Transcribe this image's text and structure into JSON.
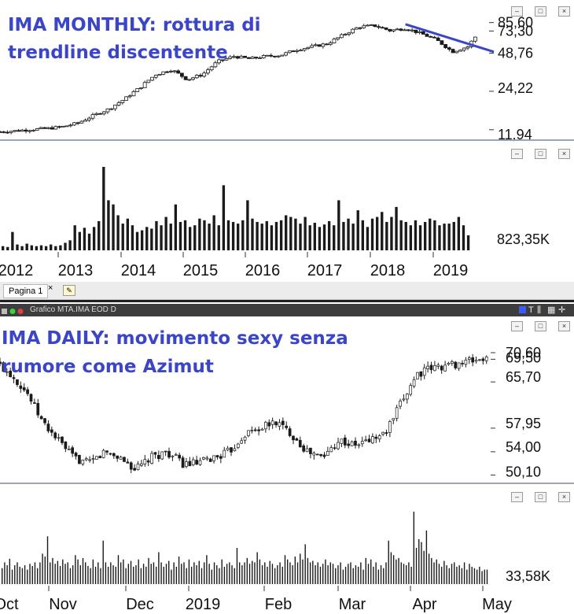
{
  "annotations": {
    "monthly_line1": "IMA MONTHLY: rottura di",
    "monthly_line2": "trendline discentente",
    "daily_line1": "IMA DAILY: movimento sexy senza",
    "daily_line2": "rumore come Azimut"
  },
  "tabs": {
    "page_label": "Pagina 1",
    "close_glyph": "×"
  },
  "daily_window": {
    "title": "Grafico MTA.IMA EOD D"
  },
  "window_buttons": [
    "minimize-icon",
    "restore-icon",
    "close-icon"
  ],
  "colors": {
    "candle": "#1a1a1a",
    "trendline": "#3a45c8",
    "annotation": "#3a45c8",
    "separator": "#9aa3b8"
  },
  "chart_data": [
    {
      "type": "candlestick",
      "panel": "monthly-price",
      "y_tick_labels": [
        "85,60",
        "73,30",
        "48,76",
        "24,22",
        "11,94"
      ],
      "x_tick_labels": [
        "2012",
        "2013",
        "2014",
        "2015",
        "2016",
        "2017",
        "2018",
        "2019"
      ],
      "x": [
        "2011-09",
        "2011-12",
        "2012-03",
        "2012-06",
        "2012-09",
        "2012-12",
        "2013-03",
        "2013-06",
        "2013-09",
        "2013-12",
        "2014-03",
        "2014-06",
        "2014-09",
        "2014-12",
        "2015-03",
        "2015-06",
        "2015-09",
        "2015-12",
        "2016-03",
        "2016-06",
        "2016-09",
        "2016-12",
        "2017-03",
        "2017-06",
        "2017-09",
        "2017-12",
        "2018-03",
        "2018-06",
        "2018-09",
        "2018-12",
        "2019-03",
        "2019-05"
      ],
      "close": [
        11.5,
        11.7,
        12.0,
        12.2,
        12.6,
        13.5,
        15.5,
        17.5,
        21,
        26,
        33,
        36,
        30,
        33,
        42,
        46,
        44,
        46,
        47,
        52,
        55,
        58,
        68,
        79,
        81,
        74,
        77,
        70,
        62,
        50,
        55,
        70
      ],
      "trendline": {
        "from": [
          "2018-03",
          83
        ],
        "to": [
          "2019-08",
          50
        ]
      }
    },
    {
      "type": "bar",
      "panel": "monthly-volume",
      "label": "823,35K",
      "x_range": [
        "2011-09",
        "2019-05"
      ],
      "relative_values": [
        0.05,
        0.04,
        0.22,
        0.07,
        0.05,
        0.08,
        0.06,
        0.05,
        0.06,
        0.05,
        0.07,
        0.05,
        0.06,
        0.09,
        0.12,
        0.3,
        0.22,
        0.27,
        0.2,
        0.28,
        0.35,
        1.0,
        0.6,
        0.55,
        0.42,
        0.32,
        0.38,
        0.3,
        0.22,
        0.24,
        0.28,
        0.26,
        0.35,
        0.3,
        0.4,
        0.32,
        0.55,
        0.34,
        0.36,
        0.28,
        0.3,
        0.38,
        0.36,
        0.32,
        0.42,
        0.3,
        0.78,
        0.36,
        0.34,
        0.32,
        0.36,
        0.6,
        0.38,
        0.34,
        0.32,
        0.35,
        0.3,
        0.34,
        0.36,
        0.42,
        0.4,
        0.38,
        0.32,
        0.4,
        0.3,
        0.33,
        0.28,
        0.31,
        0.35,
        0.3,
        0.6,
        0.34,
        0.38,
        0.32,
        0.48,
        0.36,
        0.28,
        0.38,
        0.4,
        0.46,
        0.34,
        0.4,
        0.52,
        0.36,
        0.34,
        0.3,
        0.36,
        0.3,
        0.34,
        0.38,
        0.36,
        0.3,
        0.32,
        0.32,
        0.34,
        0.4,
        0.3,
        0.18
      ],
      "x_tick_labels": [
        "2012",
        "2013",
        "2014",
        "2015",
        "2016",
        "2017",
        "2018",
        "2019"
      ]
    },
    {
      "type": "candlestick",
      "panel": "daily-price",
      "y_tick_labels": [
        "70,60",
        "69,50",
        "65,70",
        "57,95",
        "54,00",
        "50,10"
      ],
      "x_tick_labels": [
        "Oct",
        "Nov",
        "Dec",
        "2019",
        "Feb",
        "Mar",
        "Apr",
        "May"
      ],
      "x": [
        "2018-09-24",
        "2018-10-01",
        "2018-10-08",
        "2018-10-15",
        "2018-10-22",
        "2018-10-29",
        "2018-11-05",
        "2018-11-12",
        "2018-11-19",
        "2018-11-26",
        "2018-12-03",
        "2018-12-10",
        "2018-12-17",
        "2018-12-24",
        "2019-01-07",
        "2019-01-14",
        "2019-01-21",
        "2019-01-28",
        "2019-02-04",
        "2019-02-11",
        "2019-02-18",
        "2019-02-25",
        "2019-03-04",
        "2019-03-11",
        "2019-03-18",
        "2019-03-25",
        "2019-04-01",
        "2019-04-08",
        "2019-04-15",
        "2019-04-23",
        "2019-04-29"
      ],
      "close": [
        69,
        67,
        64,
        59,
        56,
        53,
        52,
        54,
        53,
        51,
        53,
        54,
        52,
        52,
        54,
        57,
        58,
        59,
        57,
        54,
        53,
        56,
        55,
        56,
        57,
        62,
        67,
        68,
        68.5,
        69,
        69.5
      ]
    },
    {
      "type": "bar",
      "panel": "daily-volume",
      "label": "33,58K",
      "x_range": [
        "2018-09-24",
        "2019-05-03"
      ],
      "relative_values": [
        0.22,
        0.3,
        0.26,
        0.35,
        0.2,
        0.26,
        0.3,
        0.24,
        0.22,
        0.26,
        0.2,
        0.28,
        0.25,
        0.3,
        0.22,
        0.3,
        0.42,
        0.38,
        0.66,
        0.3,
        0.36,
        0.28,
        0.32,
        0.25,
        0.34,
        0.28,
        0.3,
        0.22,
        0.26,
        0.4,
        0.34,
        0.26,
        0.36,
        0.3,
        0.25,
        0.22,
        0.34,
        0.24,
        0.3,
        0.22,
        0.6,
        0.3,
        0.24,
        0.3,
        0.26,
        0.24,
        0.4,
        0.3,
        0.34,
        0.22,
        0.28,
        0.32,
        0.24,
        0.26,
        0.34,
        0.22,
        0.28,
        0.24,
        0.36,
        0.28,
        0.3,
        0.24,
        0.44,
        0.3,
        0.24,
        0.28,
        0.32,
        0.2,
        0.3,
        0.24,
        0.38,
        0.28,
        0.3,
        0.22,
        0.34,
        0.24,
        0.3,
        0.26,
        0.32,
        0.22,
        0.3,
        0.4,
        0.28,
        0.2,
        0.3,
        0.26,
        0.22,
        0.34,
        0.24,
        0.28,
        0.3,
        0.26,
        0.22,
        0.5,
        0.3,
        0.26,
        0.3,
        0.36,
        0.28,
        0.32,
        0.3,
        0.44,
        0.34,
        0.26,
        0.3,
        0.24,
        0.32,
        0.28,
        0.22,
        0.26,
        0.3,
        0.24,
        0.4,
        0.34,
        0.3,
        0.26,
        0.38,
        0.3,
        0.42,
        0.34,
        0.55,
        0.36,
        0.3,
        0.32,
        0.26,
        0.3,
        0.24,
        0.28,
        0.34,
        0.26,
        0.3,
        0.28,
        0.22,
        0.26,
        0.3,
        0.2,
        0.24,
        0.28,
        0.3,
        0.22,
        0.26,
        0.24,
        0.3,
        0.2,
        0.36,
        0.28,
        0.34,
        0.24,
        0.3,
        0.2,
        0.26,
        0.22,
        0.3,
        0.6,
        0.44,
        0.4,
        0.34,
        0.36,
        0.3,
        0.28,
        0.26,
        0.3,
        0.24,
        1.0,
        0.5,
        0.62,
        0.58,
        0.46,
        0.74,
        0.42,
        0.36,
        0.3,
        0.34,
        0.28,
        0.24,
        0.32,
        0.26,
        0.22,
        0.28,
        0.3,
        0.24,
        0.26,
        0.22,
        0.3,
        0.2,
        0.28,
        0.24,
        0.22,
        0.2,
        0.24,
        0.18,
        0.2,
        0.2
      ]
    }
  ]
}
